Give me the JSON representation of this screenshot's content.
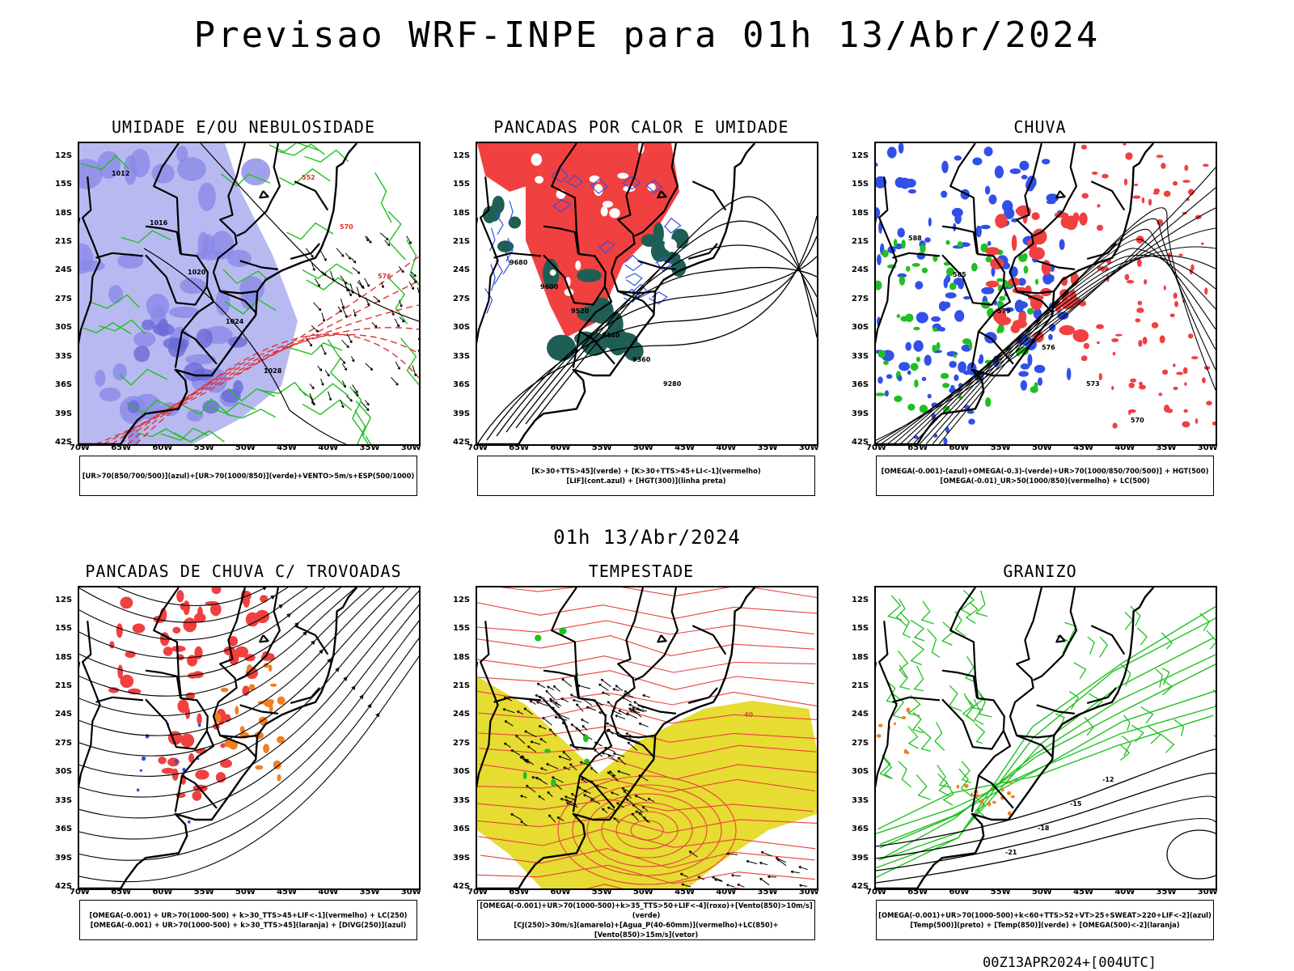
{
  "title": "Previsao WRF-INPE  para 01h 13/Abr/2024",
  "mid_time": "01h 13/Abr/2024",
  "footer": "00Z13APR2024+[004UTC]",
  "lat_ticks": [
    "12S",
    "15S",
    "18S",
    "21S",
    "24S",
    "27S",
    "30S",
    "33S",
    "36S",
    "39S",
    "42S"
  ],
  "lon_ticks": [
    "70W",
    "65W",
    "60W",
    "55W",
    "50W",
    "45W",
    "40W",
    "35W",
    "30W"
  ],
  "colors": {
    "red": "#f04040",
    "blue": "#3050e8",
    "green": "#20c020",
    "darkteal": "#1f5e55",
    "lavender": "#b9b9f2",
    "orange": "#f08020",
    "yellow": "#e6dc32"
  },
  "panels": [
    {
      "title": "UMIDADE E/OU NEBULOSIDADE",
      "legend": [
        "[UR>70(850/700/500)](azul)+[UR>70(1000/850)](verde)+VENTO>5m/s+ESP(500/1000)"
      ],
      "labels": [
        "1012",
        "1016",
        "1020",
        "1024",
        "1028",
        "552",
        "570",
        "576"
      ]
    },
    {
      "title": "PANCADAS POR CALOR E UMIDADE",
      "legend": [
        "[K>30+TTS>45](verde)  +  [K>30+TTS>45+LI<-1](vermelho)",
        "[LIF](cont.azul)  +  [HGT(300)](linha preta)"
      ],
      "labels": [
        "9680",
        "9600",
        "9520",
        "9440",
        "9360",
        "9280"
      ]
    },
    {
      "title": "CHUVA",
      "legend": [
        "[OMEGA(-0.001)-(azul)+OMEGA(-0.3)-(verde)+UR>70(1000/850/700/500)]  +  HGT(500)",
        "[OMEGA(-0.01)_UR>50(1000/850)(vermelho)  +  LC(500)"
      ],
      "labels": [
        "588",
        "585",
        "579",
        "576",
        "573",
        "570"
      ]
    },
    {
      "title": "PANCADAS DE CHUVA C/ TROVOADAS",
      "legend": [
        "[OMEGA(-0.001)  +  UR>70(1000-500)  +  k>30_TTS>45+LIF<-1](vermelho)  +  LC(250)",
        "[OMEGA(-0.001)  +  UR>70(1000-500)  +  k>30_TTS>45](laranja)  +  [DIVG(250)](azul)"
      ],
      "labels": []
    },
    {
      "title": "TEMPESTADE",
      "legend": [
        "[OMEGA(-0.001)+UR>70(1000-500)+k>35_TTS>50+LIF<-4](roxo)+[Vento(850)>10m/s](verde)",
        "[CJ(250)>30m/s](amarelo)+[Agua_P(40-60mm)](vermelho)+LC(850)+[Vento(850)>15m/s](vetor)"
      ],
      "labels": [
        "40"
      ]
    },
    {
      "title": "GRANIZO",
      "legend": [
        "[OMEGA(-0.001)+UR>70(1000-500)+k<60+TTS>52+VT>25+SWEAT>220+LIF<-2](azul)",
        "[Temp(500)](preto)  +  [Temp(850)](verde)  +  [OMEGA(500)<-2](laranja)"
      ],
      "labels": [
        "-12",
        "-15",
        "-18",
        "-21"
      ]
    }
  ]
}
